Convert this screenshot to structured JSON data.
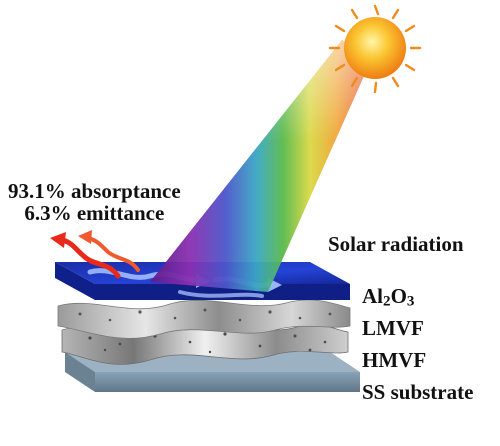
{
  "performance": {
    "absorptance": "93.1% absorptance",
    "emittance": "6.3% emittance"
  },
  "solar_label": "Solar radiation",
  "layers": {
    "al2o3": {
      "main": "Al",
      "sub1": "2",
      "mid": "O",
      "sub2": "3"
    },
    "lmvf": "LMVF",
    "hmvf": "HMVF",
    "ss": "SS substrate"
  },
  "colors": {
    "sun": "#f7a21a",
    "top_layer": "#1730b8",
    "substrate": "#7b93a6",
    "arrow_heat": "#e8291c"
  }
}
